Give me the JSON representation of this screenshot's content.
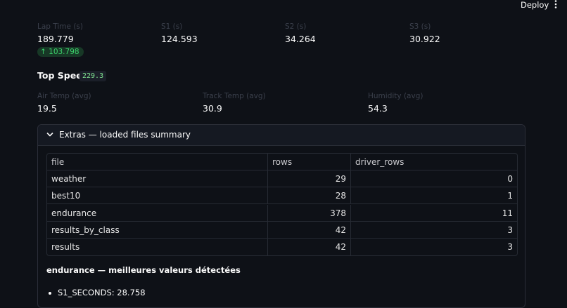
{
  "header": {
    "deploy": "Deploy"
  },
  "metrics_row1": [
    {
      "label": "Lap Time (s)",
      "value": 189.779,
      "delta": 103.798
    },
    {
      "label": "S1 (s)",
      "value": 124.593
    },
    {
      "label": "S2 (s)",
      "value": 34.264
    },
    {
      "label": "S3 (s)",
      "value": 30.922
    }
  ],
  "top_speed": {
    "label": "Top Speed:",
    "value": 229.3
  },
  "metrics_row2": [
    {
      "label": "Air Temp (avg)",
      "value": 19.5
    },
    {
      "label": "Track Temp (avg)",
      "value": 30.9
    },
    {
      "label": "Humidity (avg)",
      "value": 54.3
    }
  ],
  "expander": {
    "title": "Extras — loaded files summary",
    "table": {
      "columns": [
        "file",
        "rows",
        "driver_rows"
      ],
      "rows": [
        [
          "weather",
          29,
          0
        ],
        [
          "best10",
          28,
          1
        ],
        [
          "endurance",
          378,
          11
        ],
        [
          "results_by_class",
          42,
          3
        ],
        [
          "results",
          42,
          3
        ]
      ]
    },
    "heading": "endurance — meilleures valeurs détectées",
    "bullets": [
      "S1_SECONDS: 28.758"
    ]
  }
}
